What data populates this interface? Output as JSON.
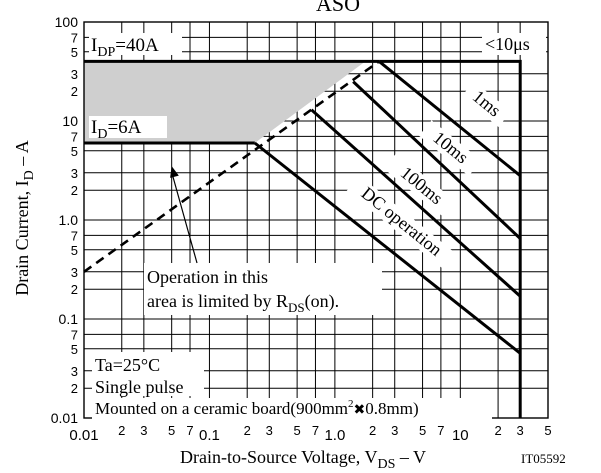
{
  "header_fragment": "ASO",
  "chart_data": {
    "type": "line",
    "title": "",
    "xlabel": "Drain-to-Source Voltage, V",
    "xlabel_sub": "DS",
    "xlabel_unit": " –  V",
    "ylabel": "Drain Current, I",
    "ylabel_sub": "D",
    "ylabel_unit": " –  A",
    "x_scale": "log",
    "y_scale": "log",
    "xlim": [
      0.01,
      50
    ],
    "ylim": [
      0.01,
      100
    ],
    "grid": true,
    "x_major_ticks": [
      {
        "value": 0.01,
        "label": "0.01"
      },
      {
        "value": 0.1,
        "label": "0.1"
      },
      {
        "value": 1,
        "label": "1.0"
      },
      {
        "value": 10,
        "label": "10"
      }
    ],
    "x_minor_ticks": [
      {
        "value": 0.02,
        "label": "2"
      },
      {
        "value": 0.03,
        "label": "3"
      },
      {
        "value": 0.05,
        "label": "5"
      },
      {
        "value": 0.07,
        "label": "7"
      },
      {
        "value": 0.2,
        "label": "2"
      },
      {
        "value": 0.3,
        "label": "3"
      },
      {
        "value": 0.5,
        "label": "5"
      },
      {
        "value": 0.7,
        "label": "7"
      },
      {
        "value": 2,
        "label": "2"
      },
      {
        "value": 3,
        "label": "3"
      },
      {
        "value": 5,
        "label": "5"
      },
      {
        "value": 7,
        "label": "7"
      },
      {
        "value": 20,
        "label": "2"
      },
      {
        "value": 30,
        "label": "3"
      },
      {
        "value": 50,
        "label": "5"
      }
    ],
    "y_major_ticks": [
      {
        "value": 0.01,
        "label": "0.01"
      },
      {
        "value": 0.1,
        "label": "0.1"
      },
      {
        "value": 1,
        "label": "1.0"
      },
      {
        "value": 10,
        "label": "10"
      },
      {
        "value": 100,
        "label": "100"
      }
    ],
    "y_minor_ticks": [
      {
        "value": 0.02,
        "label": "2"
      },
      {
        "value": 0.03,
        "label": "3"
      },
      {
        "value": 0.05,
        "label": "5"
      },
      {
        "value": 0.07,
        "label": "7"
      },
      {
        "value": 0.2,
        "label": "2"
      },
      {
        "value": 0.3,
        "label": "3"
      },
      {
        "value": 0.5,
        "label": "5"
      },
      {
        "value": 0.7,
        "label": "7"
      },
      {
        "value": 2,
        "label": "2"
      },
      {
        "value": 3,
        "label": "3"
      },
      {
        "value": 5,
        "label": "5"
      },
      {
        "value": 7,
        "label": "7"
      },
      {
        "value": 20,
        "label": "2"
      },
      {
        "value": 30,
        "label": "3"
      },
      {
        "value": 50,
        "label": "5"
      },
      {
        "value": 70,
        "label": "7"
      }
    ],
    "limits": [
      {
        "main": "I",
        "sub": "DP",
        "rest": "=40A",
        "value": 40
      },
      {
        "main": "I",
        "sub": "D",
        "rest": "=6A",
        "value": 6
      }
    ],
    "max_voltage": 30,
    "series": [
      {
        "name": "<10μs",
        "points": [
          [
            2.25,
            40
          ],
          [
            30,
            40
          ],
          [
            30,
            0.01
          ]
        ]
      },
      {
        "name": "1ms",
        "points": [
          [
            2.25,
            40
          ],
          [
            30,
            2.8
          ]
        ]
      },
      {
        "name": "10ms",
        "points": [
          [
            1.4,
            25
          ],
          [
            30,
            0.65
          ]
        ]
      },
      {
        "name": "100ms",
        "points": [
          [
            0.65,
            13
          ],
          [
            30,
            0.17
          ]
        ]
      },
      {
        "name": "DC operation",
        "points": [
          [
            0.23,
            6
          ],
          [
            30,
            0.045
          ]
        ]
      },
      {
        "name": "",
        "points": [
          [
            0.01,
            6
          ],
          [
            0.23,
            6
          ]
        ]
      },
      {
        "name": "",
        "points": [
          [
            0.01,
            40
          ],
          [
            2.25,
            40
          ]
        ]
      }
    ],
    "rds_limit_line": [
      [
        0.01,
        0.3
      ],
      [
        2.25,
        40
      ]
    ],
    "shaded_region": [
      [
        0.01,
        0.3
      ],
      [
        0.01,
        40
      ],
      [
        1.75,
        40
      ],
      [
        0.23,
        6
      ],
      [
        0.01,
        6
      ]
    ],
    "annotations": {
      "rds_note_line1": "Operation in this",
      "rds_note_line2": "area is limited by R",
      "rds_note_sub": "DS",
      "rds_note_rest": "(on).",
      "rds_note_arrow_target": [
        0.05,
        3.5
      ],
      "conditions": [
        "Ta=25°C",
        "Single pulse"
      ],
      "mount_prefix": "Mounted on a ceramic board(900mm",
      "mount_sup": "2",
      "mount_cross": "✖",
      "mount_suffix": "0.8mm)",
      "figure_code": "IT05592"
    }
  }
}
